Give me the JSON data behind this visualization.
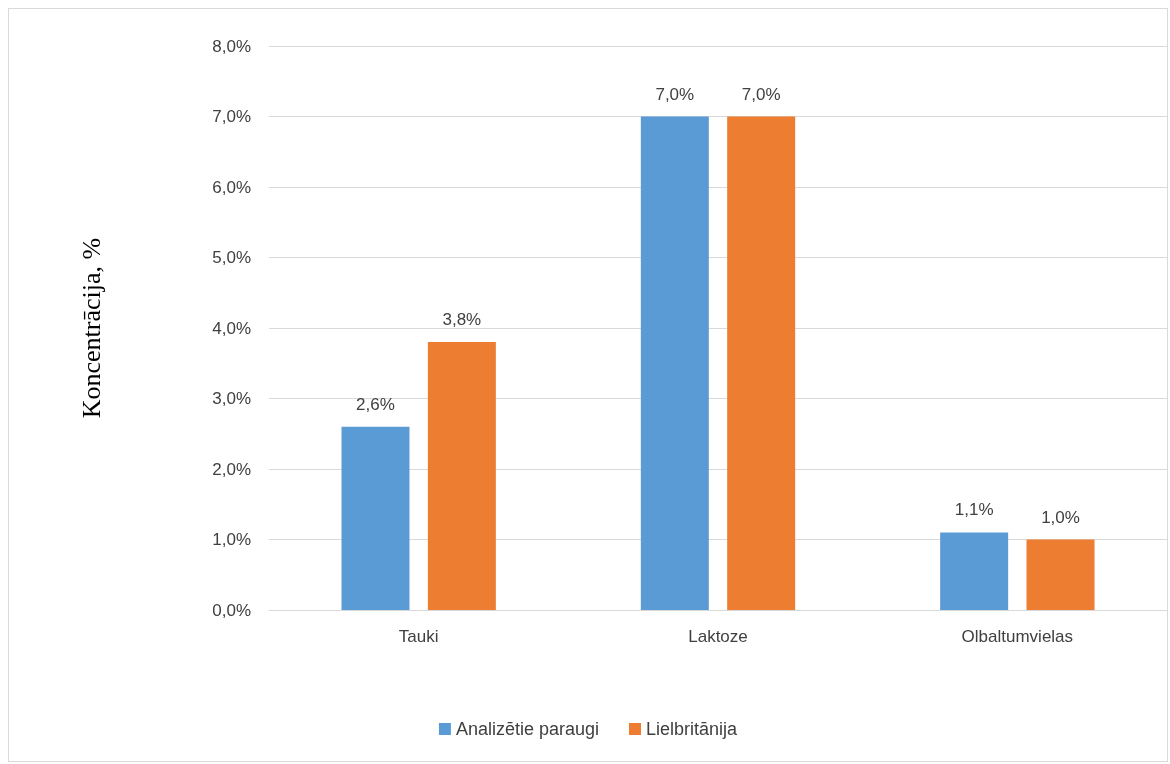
{
  "chart_data": {
    "type": "bar",
    "ylabel": "Koncentrācija, %",
    "categories": [
      "Tauki",
      "Laktoze",
      "Olbaltumvielas"
    ],
    "series": [
      {
        "name": "Analizētie paraugi",
        "color": "#5b9bd5",
        "values": [
          2.6,
          7.0,
          1.1
        ],
        "value_labels": [
          "2,6%",
          "7,0%",
          "1,1%"
        ]
      },
      {
        "name": "Lielbritānija",
        "color": "#ed7d31",
        "values": [
          3.8,
          7.0,
          1.0
        ],
        "value_labels": [
          "3,8%",
          "7,0%",
          "1,0%"
        ]
      }
    ],
    "ylim": [
      0,
      8
    ],
    "yticks": [
      {
        "value": 0,
        "label": "0,0%"
      },
      {
        "value": 1,
        "label": "1,0%"
      },
      {
        "value": 2,
        "label": "2,0%"
      },
      {
        "value": 3,
        "label": "3,0%"
      },
      {
        "value": 4,
        "label": "4,0%"
      },
      {
        "value": 5,
        "label": "5,0%"
      },
      {
        "value": 6,
        "label": "6,0%"
      },
      {
        "value": 7,
        "label": "7,0%"
      },
      {
        "value": 8,
        "label": "8,0%"
      }
    ],
    "grid": "y",
    "legend": "bottom"
  }
}
